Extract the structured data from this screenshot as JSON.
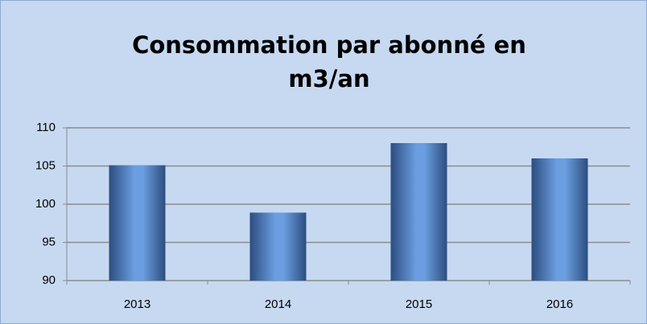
{
  "chart_data": {
    "type": "bar",
    "title": "Consommation par abonné en m3/an",
    "categories": [
      "2013",
      "2014",
      "2015",
      "2016"
    ],
    "values": [
      105.1,
      98.9,
      108,
      106
    ],
    "color": "#4f81bd",
    "ylim": [
      90,
      110
    ],
    "yticks": [
      90,
      95,
      100,
      105,
      110
    ],
    "grid": true
  }
}
